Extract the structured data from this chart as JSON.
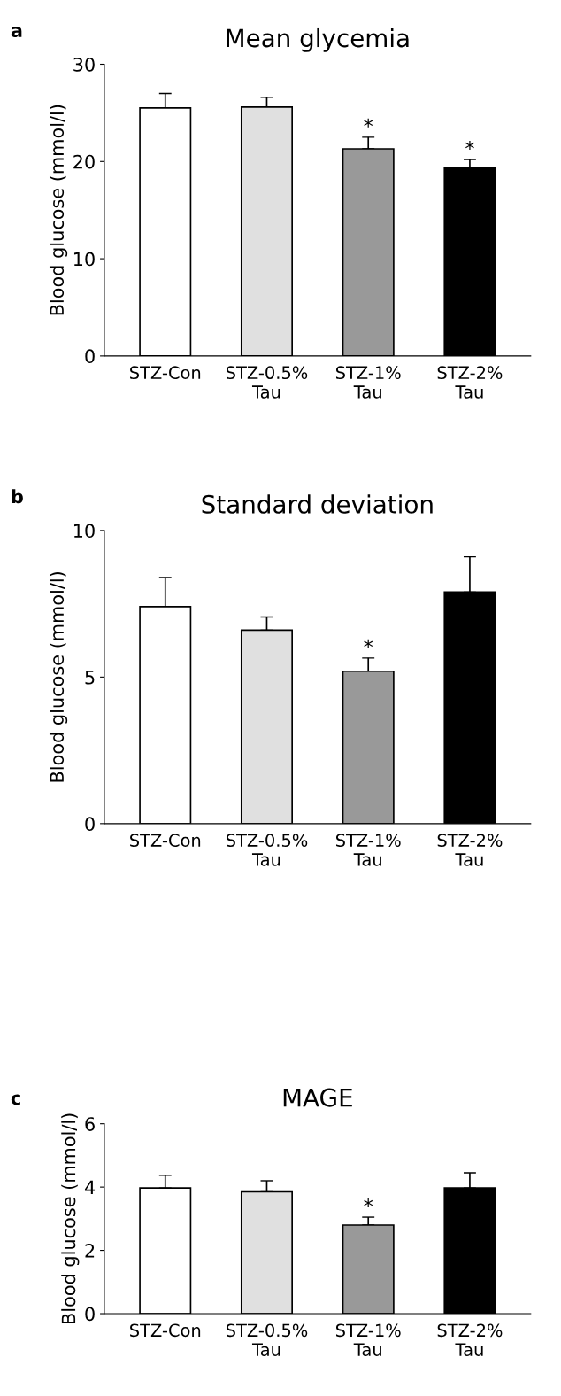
{
  "chart_data": [
    {
      "type": "bar",
      "title": "Mean glycemia",
      "ylabel": "Blood glucose (mmol/l)",
      "categories": [
        "STZ-Con",
        "STZ-0.5%\nTau",
        "STZ-1%\nTau",
        "STZ-2%\nTau"
      ],
      "values": [
        25.5,
        25.6,
        21.3,
        19.4
      ],
      "errors": [
        [
          25.5,
          27.0
        ],
        [
          25.6,
          26.6
        ],
        [
          21.3,
          22.5
        ],
        [
          19.4,
          20.2
        ]
      ],
      "colors": [
        "#ffffff",
        "#e0e0e0",
        "#999999",
        "#000000"
      ],
      "ylim": [
        0,
        30
      ],
      "yticks": [
        0,
        10,
        20,
        30
      ],
      "grid": false,
      "legend": false,
      "annotations": [
        "a",
        {
          "text": "*",
          "x": "STZ-1%\nTau",
          "y": 22.5
        },
        {
          "text": "*",
          "x": "STZ-2%\nTau",
          "y": 20.2
        }
      ]
    },
    {
      "type": "bar",
      "title": "Standard deviation",
      "ylabel": "Blood glucose (mmol/l)",
      "categories": [
        "STZ-Con",
        "STZ-0.5%\nTau",
        "STZ-1%\nTau",
        "STZ-2%\nTau"
      ],
      "values": [
        7.4,
        6.6,
        5.2,
        7.9
      ],
      "errors": [
        [
          7.4,
          8.4
        ],
        [
          6.6,
          7.05
        ],
        [
          5.2,
          5.65
        ],
        [
          7.9,
          9.1
        ]
      ],
      "colors": [
        "#ffffff",
        "#e0e0e0",
        "#999999",
        "#000000"
      ],
      "ylim": [
        0,
        10
      ],
      "yticks": [
        0,
        5,
        10
      ],
      "grid": false,
      "legend": false,
      "annotations": [
        "b",
        {
          "text": "*",
          "x": "STZ-1%\nTau",
          "y": 5.65
        }
      ]
    },
    {
      "type": "bar",
      "title": "MAGE",
      "ylabel": "Blood glucose (mmol/l)",
      "categories": [
        "STZ-Con",
        "STZ-0.5%\nTau",
        "STZ-1%\nTau",
        "STZ-2%\nTau"
      ],
      "values": [
        3.97,
        3.85,
        2.8,
        3.97
      ],
      "errors": [
        [
          3.97,
          4.37
        ],
        [
          3.85,
          4.2
        ],
        [
          2.8,
          3.05
        ],
        [
          3.97,
          4.45
        ]
      ],
      "colors": [
        "#ffffff",
        "#e0e0e0",
        "#999999",
        "#000000"
      ],
      "ylim": [
        0,
        6
      ],
      "yticks": [
        0,
        2,
        4,
        6
      ],
      "grid": false,
      "legend": false,
      "annotations": [
        "c",
        {
          "text": "*",
          "x": "STZ-1%\nTau",
          "y": 3.05
        }
      ]
    }
  ]
}
